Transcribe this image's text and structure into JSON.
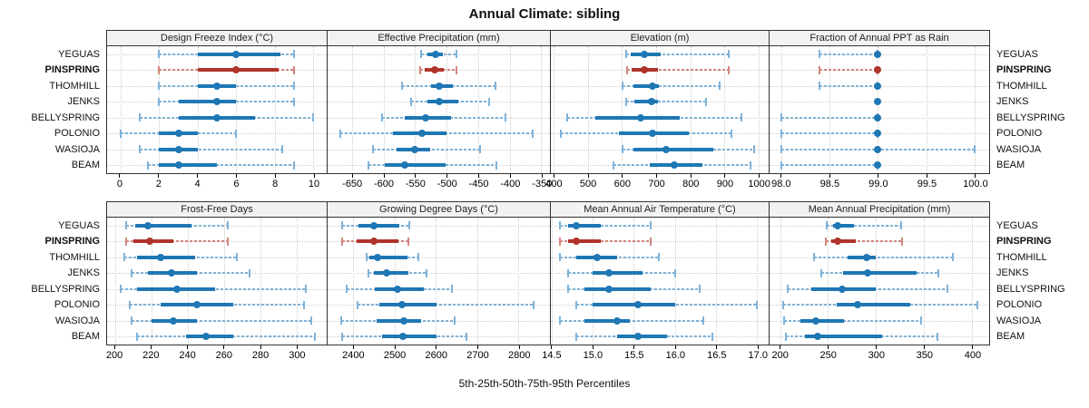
{
  "title": "Annual Climate: sibling",
  "caption": "5th-25th-50th-75th-95th Percentiles",
  "sites": [
    "YEGUAS",
    "PINSPRING",
    "THOMHILL",
    "JENKS",
    "BELLYSPRING",
    "POLONIO",
    "WASIOJA",
    "BEAM"
  ],
  "highlighted_site": "PINSPRING",
  "colors": {
    "series_main": "#1f77b4",
    "series_light": "#7fb2d8",
    "highlight_main": "#b0342b",
    "highlight_light": "#d4857d",
    "grid": "#cfcfcf",
    "header_bg": "#f2f2f2",
    "border": "#333333"
  },
  "chart_data": {
    "type": "percentile-dotplot",
    "title": "Annual Climate: sibling",
    "xlabel": "5th-25th-50th-75th-95th Percentiles",
    "percentiles": [
      5,
      25,
      50,
      75,
      95
    ],
    "legend_position": "none",
    "grid": "dotted",
    "layout": "2 rows x 4 columns, shared site rows",
    "panels": [
      {
        "title": "Design Freeze Index (°C)",
        "row": 0,
        "domain": [
          -0.7,
          10.7
        ],
        "ticks": {
          "values": [
            0,
            2,
            4,
            6,
            8,
            10
          ],
          "labels": [
            "0",
            "2",
            "4",
            "6",
            "8",
            "10"
          ]
        },
        "values": [
          [
            2,
            4,
            6,
            8.3,
            9
          ],
          [
            2,
            4,
            6,
            8.2,
            9
          ],
          [
            2,
            4,
            5,
            6,
            9
          ],
          [
            2,
            3,
            5,
            6,
            9
          ],
          [
            1,
            3,
            5,
            7,
            10
          ],
          [
            0,
            2,
            3,
            4,
            6
          ],
          [
            1,
            2,
            3,
            4,
            8.4
          ],
          [
            1.4,
            2,
            3,
            5,
            9
          ]
        ]
      },
      {
        "title": "Effective Precipitation (mm)",
        "row": 0,
        "domain": [
          -689,
          -336
        ],
        "ticks": {
          "values": [
            -650,
            -600,
            -550,
            -500,
            -450,
            -400,
            -350
          ],
          "labels": [
            "-650",
            "-600",
            "-550",
            "-500",
            "-450",
            "-400",
            "-350"
          ]
        },
        "values": [
          [
            -540,
            -530,
            -518,
            -506,
            -485
          ],
          [
            -542,
            -535,
            -519,
            -504,
            -485
          ],
          [
            -571,
            -525,
            -512,
            -490,
            -423
          ],
          [
            -556,
            -530,
            -512,
            -481,
            -432
          ],
          [
            -602,
            -566,
            -533,
            -493,
            -406
          ],
          [
            -669,
            -585,
            -539,
            -500,
            -363
          ],
          [
            -617,
            -580,
            -550,
            -526,
            -447
          ],
          [
            -624,
            -598,
            -567,
            -502,
            -421
          ]
        ]
      },
      {
        "title": "Elevation (m)",
        "row": 0,
        "domain": [
          391,
          1030
        ],
        "ticks": {
          "values": [
            400,
            500,
            600,
            700,
            800,
            900,
            1000
          ],
          "labels": [
            "400",
            "500",
            "600",
            "700",
            "800",
            "900",
            "1000"
          ]
        },
        "values": [
          [
            611,
            624,
            664,
            712,
            912
          ],
          [
            615,
            628,
            664,
            704,
            912
          ],
          [
            602,
            633,
            688,
            708,
            885
          ],
          [
            611,
            637,
            686,
            704,
            845
          ],
          [
            438,
            522,
            655,
            770,
            951
          ],
          [
            420,
            591,
            688,
            795,
            920
          ],
          [
            602,
            633,
            730,
            867,
            987
          ],
          [
            575,
            681,
            752,
            836,
            978
          ]
        ]
      },
      {
        "title": "Fraction of Annual PPT as Rain",
        "row": 0,
        "domain": [
          97.88,
          100.15
        ],
        "ticks": {
          "values": [
            98.0,
            98.5,
            99.0,
            99.5,
            100.0
          ],
          "labels": [
            "98.0",
            "98.5",
            "99.0",
            "99.5",
            "100.0"
          ]
        },
        "values": [
          [
            98.4,
            99,
            99,
            99,
            99
          ],
          [
            98.4,
            99,
            99,
            99,
            99
          ],
          [
            98.4,
            99,
            99,
            99,
            99
          ],
          [
            99,
            99,
            99,
            99,
            99
          ],
          [
            98,
            99,
            99,
            99,
            99
          ],
          [
            98,
            99,
            99,
            99,
            99
          ],
          [
            98,
            99,
            99,
            99,
            100
          ],
          [
            98,
            99,
            99,
            99,
            99
          ]
        ]
      },
      {
        "title": "Frost-Free Days",
        "row": 1,
        "domain": [
          195.5,
          316.7
        ],
        "ticks": {
          "values": [
            200,
            220,
            240,
            260,
            280,
            300
          ],
          "labels": [
            "200",
            "220",
            "240",
            "260",
            "280",
            "300"
          ]
        },
        "values": [
          [
            206,
            211,
            218,
            242,
            262
          ],
          [
            206,
            210,
            219,
            232,
            262
          ],
          [
            205,
            212,
            225,
            244,
            267
          ],
          [
            209,
            218,
            231,
            245,
            274
          ],
          [
            203,
            212,
            234,
            255,
            305
          ],
          [
            208,
            225,
            245,
            265,
            304
          ],
          [
            209,
            220,
            232,
            245,
            308
          ],
          [
            212,
            239,
            250,
            265,
            310
          ]
        ]
      },
      {
        "title": "Growing Degree Days (°C)",
        "row": 1,
        "domain": [
          2338,
          2876
        ],
        "ticks": {
          "values": [
            2400,
            2500,
            2600,
            2700,
            2800
          ],
          "labels": [
            "2400",
            "2500",
            "2600",
            "2700",
            "2800"
          ]
        },
        "values": [
          [
            2374,
            2412,
            2450,
            2511,
            2536
          ],
          [
            2374,
            2409,
            2449,
            2509,
            2534
          ],
          [
            2433,
            2440,
            2458,
            2532,
            2558
          ],
          [
            2436,
            2449,
            2481,
            2534,
            2578
          ],
          [
            2385,
            2452,
            2508,
            2571,
            2638
          ],
          [
            2411,
            2463,
            2518,
            2601,
            2836
          ],
          [
            2371,
            2456,
            2522,
            2565,
            2645
          ],
          [
            2374,
            2469,
            2520,
            2601,
            2673
          ]
        ]
      },
      {
        "title": "Mean Annual Air Temperature (°C)",
        "row": 1,
        "domain": [
          14.49,
          17.14
        ],
        "ticks": {
          "values": [
            14.5,
            15.0,
            15.5,
            16.0,
            16.5,
            17.0
          ],
          "labels": [
            "14.5",
            "15.0",
            "15.5",
            "16.0",
            "16.5",
            "17.0"
          ]
        },
        "values": [
          [
            14.6,
            14.7,
            14.8,
            15.1,
            15.7
          ],
          [
            14.6,
            14.7,
            14.8,
            15.1,
            15.7
          ],
          [
            14.6,
            14.8,
            15.05,
            15.3,
            15.8
          ],
          [
            14.7,
            15.0,
            15.2,
            15.6,
            16.0
          ],
          [
            14.7,
            14.9,
            15.2,
            15.7,
            16.3
          ],
          [
            14.8,
            15.0,
            15.55,
            16.0,
            17.0
          ],
          [
            14.6,
            14.9,
            15.3,
            15.45,
            16.35
          ],
          [
            14.8,
            15.3,
            15.55,
            15.9,
            16.45
          ]
        ]
      },
      {
        "title": "Mean Annual Precipitation (mm)",
        "row": 1,
        "domain": [
          189,
          418
        ],
        "ticks": {
          "values": [
            200,
            250,
            300,
            350,
            400
          ],
          "labels": [
            "200",
            "250",
            "300",
            "350",
            "400"
          ]
        },
        "values": [
          [
            249,
            255,
            260,
            277,
            326
          ],
          [
            248,
            253,
            260,
            279,
            327
          ],
          [
            235,
            270,
            290,
            300,
            380
          ],
          [
            243,
            266,
            291,
            342,
            365
          ],
          [
            208,
            233,
            265,
            300,
            374
          ],
          [
            203,
            259,
            281,
            336,
            406
          ],
          [
            204,
            221,
            237,
            267,
            347
          ],
          [
            206,
            226,
            239,
            306,
            364
          ]
        ]
      }
    ]
  }
}
